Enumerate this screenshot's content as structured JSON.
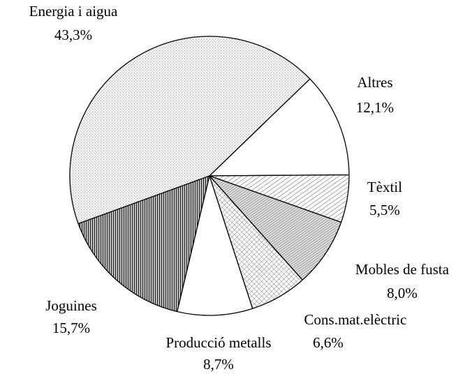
{
  "chart_data": {
    "type": "pie",
    "categories": [
      "Altres",
      "Tèxtil",
      "Mobles de fusta",
      "Cons.mat.elèctric",
      "Producció metalls",
      "Joguines",
      "Energia i aigua"
    ],
    "values": [
      12.1,
      5.5,
      8.0,
      6.6,
      8.7,
      15.7,
      43.3
    ],
    "value_labels": [
      "12,1%",
      "5,5%",
      "8,0%",
      "6,6%",
      "8,7%",
      "15,7%",
      "43,3%"
    ]
  }
}
